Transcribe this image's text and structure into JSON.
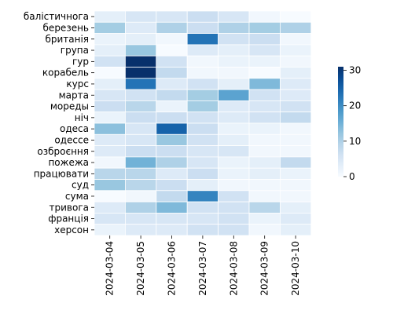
{
  "chart_data": {
    "type": "heatmap",
    "title": "",
    "xlabel": "",
    "ylabel": "",
    "x_categories": [
      "2024-03-04",
      "2024-03-05",
      "2024-03-06",
      "2024-03-07",
      "2024-03-08",
      "2024-03-09",
      "2024-03-10"
    ],
    "y_categories": [
      "балістичнога",
      "березень",
      "британія",
      "група",
      "гур",
      "корабель",
      "курс",
      "марта",
      "моpеды",
      "ніч",
      "одеса",
      "одессе",
      "озброєння",
      "пожежа",
      "працювати",
      "суд",
      "сума",
      "тривога",
      "франція",
      "херсон"
    ],
    "values": [
      [
        3,
        5,
        5,
        7,
        5,
        1,
        0
      ],
      [
        11,
        4,
        10,
        7,
        10,
        11,
        10
      ],
      [
        2,
        3,
        1,
        23,
        6,
        7,
        1
      ],
      [
        3,
        12,
        0,
        4,
        3,
        5,
        2
      ],
      [
        6,
        31,
        6,
        1,
        2,
        2,
        1
      ],
      [
        0,
        31,
        8,
        1,
        1,
        0,
        3
      ],
      [
        3,
        23,
        4,
        6,
        3,
        14,
        4
      ],
      [
        5,
        6,
        8,
        11,
        17,
        6,
        4
      ],
      [
        7,
        9,
        2,
        11,
        4,
        5,
        6
      ],
      [
        2,
        7,
        7,
        6,
        4,
        6,
        8
      ],
      [
        13,
        5,
        25,
        7,
        2,
        2,
        1
      ],
      [
        4,
        5,
        12,
        6,
        3,
        1,
        1
      ],
      [
        4,
        7,
        7,
        5,
        5,
        1,
        1
      ],
      [
        1,
        15,
        10,
        5,
        2,
        3,
        8
      ],
      [
        9,
        9,
        4,
        7,
        2,
        3,
        2
      ],
      [
        12,
        9,
        7,
        3,
        1,
        1,
        1
      ],
      [
        0,
        1,
        8,
        21,
        6,
        1,
        1
      ],
      [
        4,
        10,
        14,
        6,
        6,
        9,
        3
      ],
      [
        5,
        5,
        5,
        5,
        6,
        2,
        4
      ],
      [
        2,
        4,
        4,
        6,
        6,
        1,
        3
      ]
    ],
    "colorbar": {
      "min": 0,
      "max": 31,
      "ticks": [
        0,
        10,
        20,
        30
      ],
      "colormap": "Blues"
    },
    "cell_border_color": "#ffffff"
  }
}
